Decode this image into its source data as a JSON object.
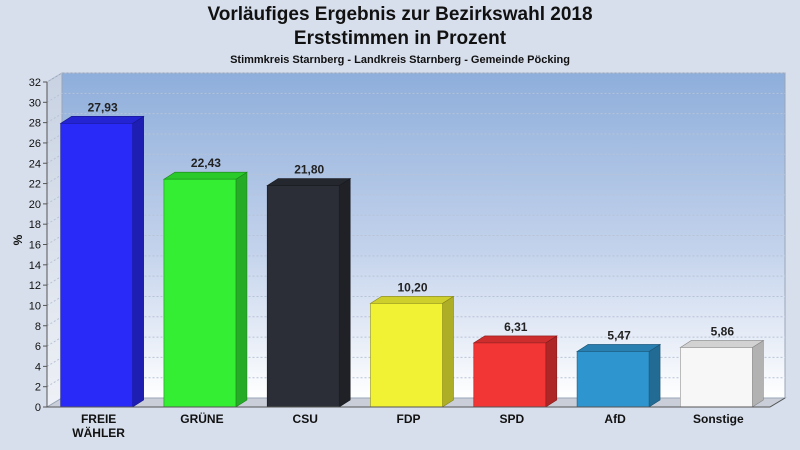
{
  "header": {
    "title_line1": "Vorläufiges Ergebnis zur Bezirkswahl 2018",
    "title_line2": "Erststimmen in Prozent",
    "subtitle": "Stimmkreis Starnberg - Landkreis Starnberg - Gemeinde Pöcking"
  },
  "chart_data": {
    "type": "bar",
    "title": "Vorläufiges Ergebnis zur Bezirkswahl 2018 - Erststimmen in Prozent",
    "subtitle": "Stimmkreis Starnberg - Landkreis Starnberg - Gemeinde Pöcking",
    "xlabel": "",
    "ylabel": "%",
    "ylim": [
      0,
      32
    ],
    "yticks": [
      0,
      2,
      4,
      6,
      8,
      10,
      12,
      14,
      16,
      18,
      20,
      22,
      24,
      26,
      28,
      30,
      32
    ],
    "grid": true,
    "categories": [
      "FREIE WÄHLER",
      "GRÜNE",
      "CSU",
      "FDP",
      "SPD",
      "AfD",
      "Sonstige"
    ],
    "category_lines": [
      [
        "FREIE",
        "WÄHLER"
      ],
      [
        "GRÜNE"
      ],
      [
        "CSU"
      ],
      [
        "FDP"
      ],
      [
        "SPD"
      ],
      [
        "AfD"
      ],
      [
        "Sonstige"
      ]
    ],
    "values": [
      27.93,
      22.43,
      21.8,
      10.2,
      6.31,
      5.47,
      5.86
    ],
    "value_labels": [
      "27,93",
      "22,43",
      "21,80",
      "10,20",
      "6,31",
      "5,47",
      "5,86"
    ],
    "colors": [
      "#2a2af8",
      "#33ee33",
      "#2b2e36",
      "#f2f235",
      "#f23535",
      "#2f95cf",
      "#f7f7f7"
    ]
  }
}
